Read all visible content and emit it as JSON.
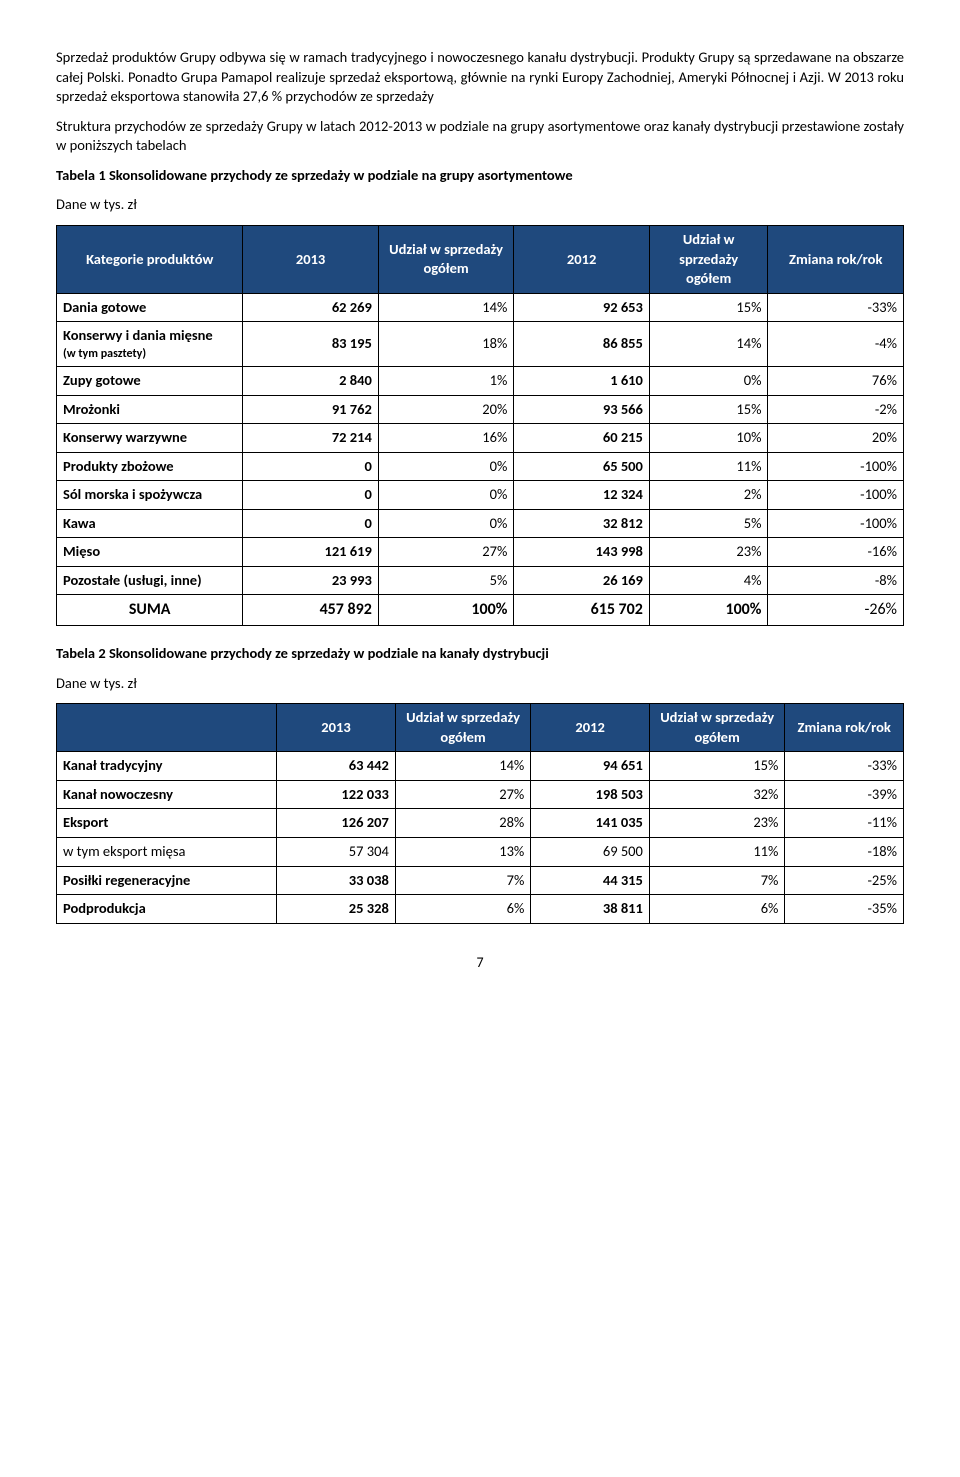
{
  "intro": {
    "p1": "Sprzedaż produktów Grupy odbywa się w ramach tradycyjnego i nowoczesnego kanału dystrybucji. Produkty Grupy są sprzedawane na obszarze całej Polski. Ponadto Grupa Pamapol realizuje sprzedaż eksportową, głównie na rynki Europy Zachodniej, Ameryki Północnej i Azji. W 2013 roku sprzedaż eksportowa stanowiła 27,6  % przychodów ze sprzedaży",
    "p2": "Struktura przychodów ze sprzedaży Grupy w latach 2012-2013 w podziale na grupy asortymentowe oraz kanały dystrybucji przestawione zostały w poniższych tabelach"
  },
  "table1": {
    "title": "Tabela 1 Skonsolidowane przychody ze sprzedaży w podziale na grupy asortymentowe",
    "unit": "Dane w tys. zł",
    "headers": {
      "cat": "Kategorie produktów",
      "y2013": "2013",
      "u2013": "Udział w sprzedaży ogółem",
      "y2012": "2012",
      "u2012": "Udział w sprzedaży ogółem",
      "change": "Zmiana rok/rok"
    },
    "rows": [
      {
        "label": "Dania gotowe",
        "v2013": "62 269",
        "u2013": "14%",
        "v2012": "92 653",
        "u2012": "15%",
        "ch": "-33%"
      },
      {
        "label": "Konserwy i dania mięsne",
        "sub": "(w tym pasztety)",
        "v2013": "83 195",
        "u2013": "18%",
        "v2012": "86 855",
        "u2012": "14%",
        "ch": "-4%"
      },
      {
        "label": "Zupy gotowe",
        "v2013": "2 840",
        "u2013": "1%",
        "v2012": "1 610",
        "u2012": "0%",
        "ch": "76%"
      },
      {
        "label": "Mrożonki",
        "v2013": "91 762",
        "u2013": "20%",
        "v2012": "93 566",
        "u2012": "15%",
        "ch": "-2%"
      },
      {
        "label": "Konserwy warzywne",
        "v2013": "72 214",
        "u2013": "16%",
        "v2012": "60 215",
        "u2012": "10%",
        "ch": "20%"
      },
      {
        "label": "Produkty zbożowe",
        "v2013": "0",
        "u2013": "0%",
        "v2012": "65 500",
        "u2012": "11%",
        "ch": "-100%"
      },
      {
        "label": "Sól morska i spożywcza",
        "v2013": "0",
        "u2013": "0%",
        "v2012": "12 324",
        "u2012": "2%",
        "ch": "-100%"
      },
      {
        "label": "Kawa",
        "v2013": "0",
        "u2013": "0%",
        "v2012": "32 812",
        "u2012": "5%",
        "ch": "-100%"
      },
      {
        "label": "Mięso",
        "v2013": "121 619",
        "u2013": "27%",
        "v2012": "143 998",
        "u2012": "23%",
        "ch": "-16%"
      },
      {
        "label": "Pozostałe (usługi, inne)",
        "v2013": "23 993",
        "u2013": "5%",
        "v2012": "26 169",
        "u2012": "4%",
        "ch": "-8%"
      }
    ],
    "sum": {
      "label": "SUMA",
      "v2013": "457 892",
      "u2013": "100%",
      "v2012": "615 702",
      "u2012": "100%",
      "ch": "-26%"
    }
  },
  "table2": {
    "title": "Tabela 2 Skonsolidowane przychody ze sprzedaży w podziale na kanały dystrybucji",
    "unit": "Dane w tys. zł",
    "headers": {
      "cat": "",
      "y2013": "2013",
      "u2013": "Udział w sprzedaży ogółem",
      "y2012": "2012",
      "u2012": "Udział w sprzedaży ogółem",
      "change": "Zmiana rok/rok"
    },
    "rows": [
      {
        "label": "Kanał tradycyjny",
        "v2013": "63 442",
        "u2013": "14%",
        "v2012": "94 651",
        "u2012": "15%",
        "ch": "-33%"
      },
      {
        "label": "Kanał nowoczesny",
        "v2013": "122 033",
        "u2013": "27%",
        "v2012": "198 503",
        "u2012": "32%",
        "ch": "-39%"
      },
      {
        "label": "Eksport",
        "v2013": "126 207",
        "u2013": "28%",
        "v2012": "141 035",
        "u2012": "23%",
        "ch": "-11%"
      },
      {
        "label": "w tym eksport mięsa",
        "v2013": "57 304",
        "u2013": "13%",
        "v2012": "69 500",
        "u2012": "11%",
        "ch": "-18%",
        "light": true
      },
      {
        "label": "Posiłki regeneracyjne",
        "v2013": "33 038",
        "u2013": "7%",
        "v2012": "44 315",
        "u2012": "7%",
        "ch": "-25%"
      },
      {
        "label": "Podprodukcja",
        "v2013": "25 328",
        "u2013": "6%",
        "v2012": "38 811",
        "u2012": "6%",
        "ch": "-35%"
      }
    ]
  },
  "page": "7"
}
